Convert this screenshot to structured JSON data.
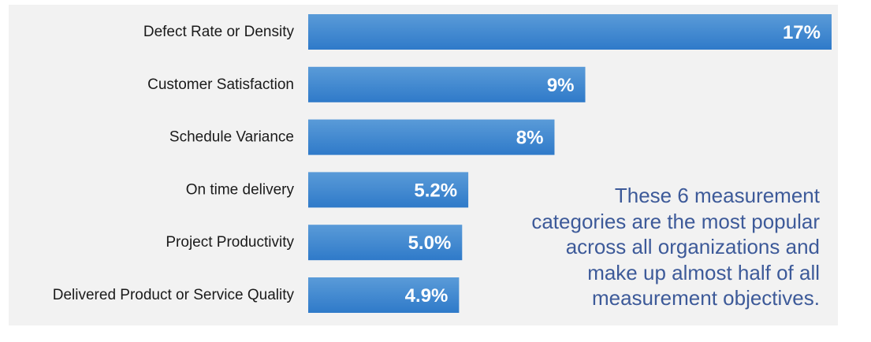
{
  "chart_data": {
    "type": "bar",
    "orientation": "horizontal",
    "categories": [
      "Defect Rate or Density",
      "Customer Satisfaction",
      "Schedule Variance",
      "On time delivery",
      "Project Productivity",
      "Delivered Product or Service Quality"
    ],
    "values": [
      17,
      9,
      8,
      5.2,
      5.0,
      4.9
    ],
    "value_labels": [
      "17%",
      "9%",
      "8%",
      "5.2%",
      "5.0%",
      "4.9%"
    ],
    "xlim": [
      0,
      17
    ],
    "grid": false,
    "legend": "none",
    "bar_color_top": "#5a9bd8",
    "bar_color_bottom": "#2f7ac9"
  },
  "annotation": {
    "lines": [
      "These 6 measurement",
      "categories are the most popular",
      "across all organizations and",
      "make up almost half of all",
      "measurement objectives."
    ],
    "color": "#3d5a99"
  },
  "panel_color": "#f2f2f2"
}
